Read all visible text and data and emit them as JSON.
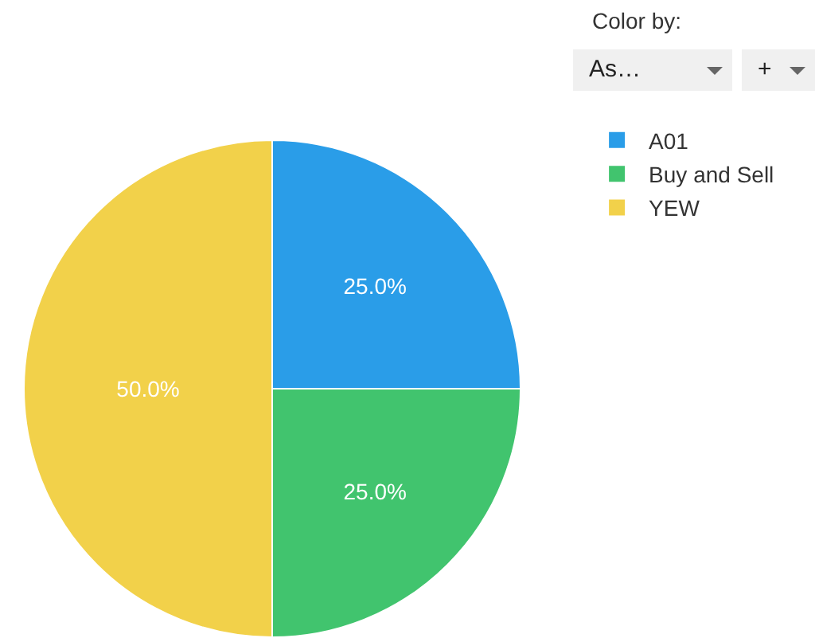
{
  "chart_data": {
    "type": "pie",
    "legend_title": "Color by:",
    "annotations": [
      "As…",
      "+"
    ],
    "categories": [
      "A01",
      "Buy and Sell",
      "YEW"
    ],
    "values": [
      25,
      25,
      50
    ],
    "colors": [
      "#2a9de8",
      "#41c46e",
      "#f2d14a"
    ],
    "value_labels": [
      "25.0%",
      "25.0%",
      "50.0%"
    ],
    "legend": "top right"
  }
}
